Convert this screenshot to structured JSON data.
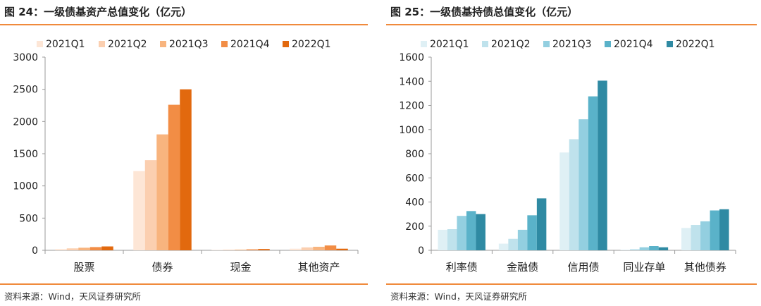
{
  "panels": [
    {
      "title": "图 24：一级债基资产总值变化（亿元）",
      "source": "资料来源：Wind，天风证券研究所",
      "chart_data": {
        "type": "bar",
        "categories": [
          "股票",
          "债券",
          "现金",
          "其他资产"
        ],
        "series": [
          {
            "name": "2021Q1",
            "color": "#fde6d6",
            "values": [
              20,
              1230,
              5,
              25
            ]
          },
          {
            "name": "2021Q2",
            "color": "#fbcfb0",
            "values": [
              30,
              1400,
              8,
              45
            ]
          },
          {
            "name": "2021Q3",
            "color": "#f8b47e",
            "values": [
              40,
              1800,
              10,
              55
            ]
          },
          {
            "name": "2021Q4",
            "color": "#f28d45",
            "values": [
              50,
              2260,
              15,
              75
            ]
          },
          {
            "name": "2022Q1",
            "color": "#e2690e",
            "values": [
              60,
              2500,
              20,
              25
            ]
          }
        ],
        "ylim": [
          0,
          3000
        ],
        "yticks": [
          0,
          500,
          1000,
          1500,
          2000,
          2500,
          3000
        ],
        "legend": "top"
      }
    },
    {
      "title": "图 25：一级债基持债总值变化（亿元）",
      "source": "资料来源：Wind，天风证券研究所",
      "chart_data": {
        "type": "bar",
        "categories": [
          "利率债",
          "金融债",
          "信用债",
          "同业存单",
          "其他债券"
        ],
        "series": [
          {
            "name": "2021Q1",
            "color": "#dff0f5",
            "values": [
              170,
              55,
              810,
              5,
              185
            ]
          },
          {
            "name": "2021Q2",
            "color": "#bfe2ec",
            "values": [
              175,
              95,
              920,
              10,
              210
            ]
          },
          {
            "name": "2021Q3",
            "color": "#93cfe0",
            "values": [
              285,
              170,
              1085,
              25,
              240
            ]
          },
          {
            "name": "2021Q4",
            "color": "#5ab2c9",
            "values": [
              325,
              290,
              1275,
              35,
              330
            ]
          },
          {
            "name": "2022Q1",
            "color": "#2f8aa3",
            "values": [
              300,
              430,
              1405,
              25,
              340
            ]
          }
        ],
        "ylim": [
          0,
          1600
        ],
        "yticks": [
          0,
          200,
          400,
          600,
          800,
          1000,
          1200,
          1400,
          1600
        ],
        "legend": "top"
      }
    }
  ]
}
